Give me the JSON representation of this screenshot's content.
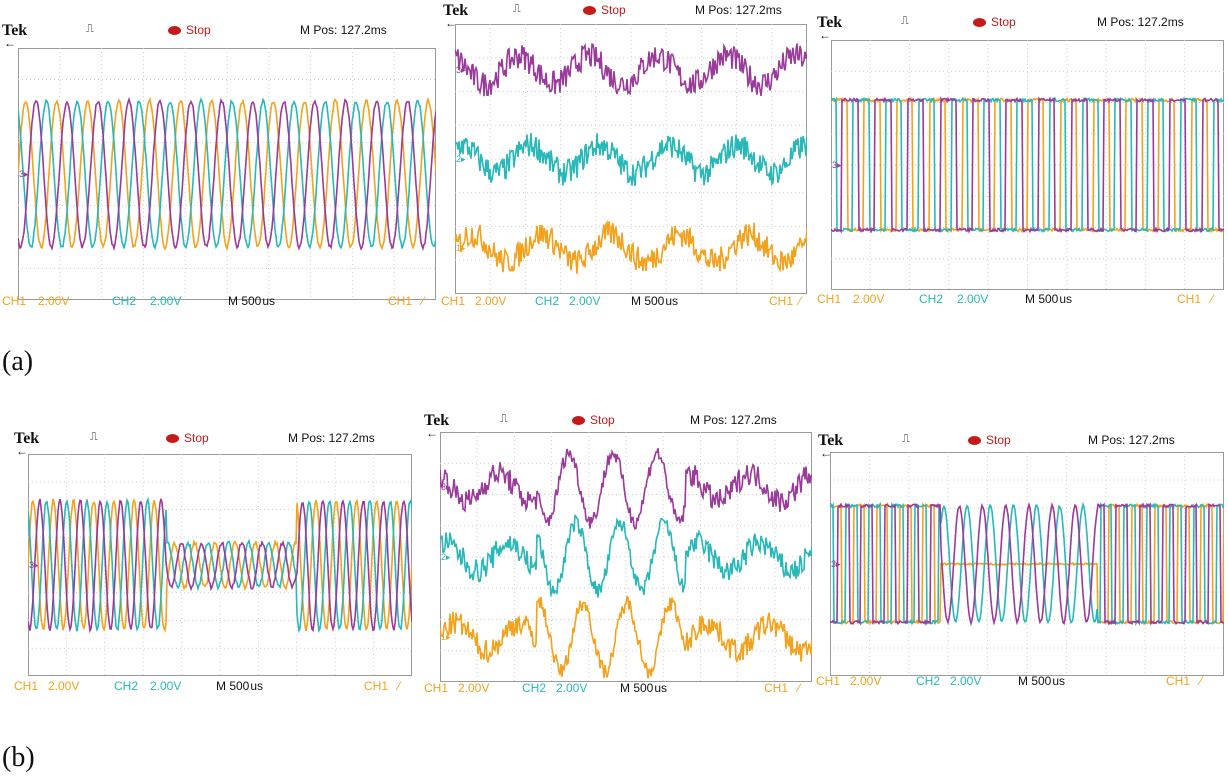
{
  "scope_labels": {
    "brand": "Tek",
    "trigger_glyph": "⎍",
    "trigger_suffix": "  ",
    "stop": "Stop",
    "m_pos": "M Pos: 127.2ms",
    "ch1_label": "CH1",
    "ch1_scale": "2.00V",
    "ch2_label": "CH2",
    "ch2_scale": "2.00V",
    "timebase": "M 500 us",
    "trig_source": "CH1",
    "trig_slope": "⁄"
  },
  "colors": {
    "ch1": "#f3a21d",
    "ch2": "#28b8b8",
    "ch3": "#9a3a9a",
    "grid": "#cfcfcf",
    "stop": "#c41a1a"
  },
  "captions": {
    "a": "(a)",
    "b": "(b)"
  },
  "scopes": [
    {
      "id": "a1",
      "type": "sine3",
      "channel_markers": [
        "3"
      ]
    },
    {
      "id": "a2",
      "type": "noisy3",
      "channel_markers": [
        "3",
        "2",
        "1"
      ]
    },
    {
      "id": "a3",
      "type": "square3",
      "channel_markers": [
        "3"
      ]
    },
    {
      "id": "b1",
      "type": "sine3-dip",
      "channel_markers": [
        "3"
      ]
    },
    {
      "id": "b2",
      "type": "noisy3-burst",
      "channel_markers": [
        "3",
        "2",
        "1"
      ]
    },
    {
      "id": "b3",
      "type": "square3-sinemid",
      "channel_markers": [
        "3"
      ]
    }
  ]
}
